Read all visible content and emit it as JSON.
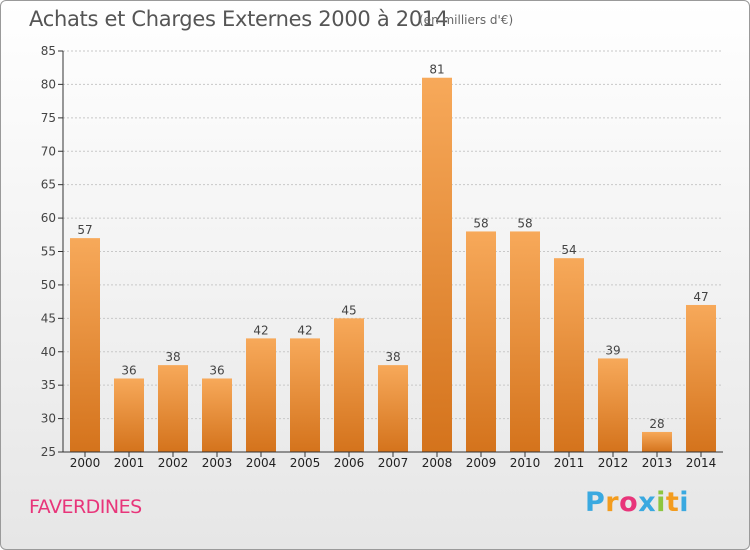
{
  "header": {
    "title": "Achats et Charges Externes 2000 à 2014",
    "subtitle": "(en milliers d'€)"
  },
  "footer": {
    "commune": "FAVERDINES",
    "logo_letters": [
      "P",
      "r",
      "o",
      "x",
      "i",
      "t",
      "i"
    ],
    "logo_colors": [
      "#3aa9e0",
      "#f39c1e",
      "#e8357a",
      "#3aa9e0",
      "#8dc63f",
      "#f39c1e",
      "#3aa9e0"
    ]
  },
  "colors": {
    "bar_top": "#f7a95a",
    "bar_bottom": "#d4731c",
    "grid": "#c8c8c8",
    "axis": "#333333",
    "label": "#444444"
  },
  "chart_data": {
    "type": "bar",
    "title": "Achats et Charges Externes 2000 à 2014",
    "subtitle": "(en milliers d'€)",
    "xlabel": "",
    "ylabel": "",
    "categories": [
      "2000",
      "2001",
      "2002",
      "2003",
      "2004",
      "2005",
      "2006",
      "2007",
      "2008",
      "2009",
      "2010",
      "2011",
      "2012",
      "2013",
      "2014"
    ],
    "values": [
      57,
      36,
      38,
      36,
      42,
      42,
      45,
      38,
      81,
      58,
      58,
      54,
      39,
      28,
      47
    ],
    "ylim": [
      25,
      85
    ],
    "yticks": [
      25,
      30,
      35,
      40,
      45,
      50,
      55,
      60,
      65,
      70,
      75,
      80,
      85
    ],
    "grid": true,
    "legend": "none"
  }
}
